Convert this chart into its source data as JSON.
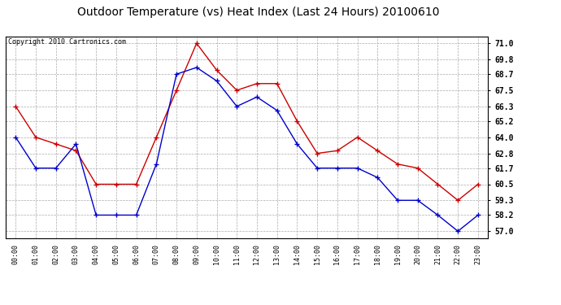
{
  "title": "Outdoor Temperature (vs) Heat Index (Last 24 Hours) 20100610",
  "copyright": "Copyright 2010 Cartronics.com",
  "x_labels": [
    "00:00",
    "01:00",
    "02:00",
    "03:00",
    "04:00",
    "05:00",
    "06:00",
    "07:00",
    "08:00",
    "09:00",
    "10:00",
    "11:00",
    "12:00",
    "13:00",
    "14:00",
    "15:00",
    "16:00",
    "17:00",
    "18:00",
    "19:00",
    "20:00",
    "21:00",
    "22:00",
    "23:00"
  ],
  "red_data": [
    66.3,
    64.0,
    63.5,
    63.0,
    60.5,
    60.5,
    60.5,
    64.0,
    67.5,
    71.0,
    69.0,
    67.5,
    68.0,
    68.0,
    65.2,
    62.8,
    63.0,
    64.0,
    63.0,
    62.0,
    61.7,
    60.5,
    59.3,
    60.5
  ],
  "blue_data": [
    64.0,
    61.7,
    61.7,
    63.5,
    58.2,
    58.2,
    58.2,
    62.0,
    68.7,
    69.2,
    68.2,
    66.3,
    67.0,
    66.0,
    63.5,
    61.7,
    61.7,
    61.7,
    61.0,
    59.3,
    59.3,
    58.2,
    57.0,
    58.2
  ],
  "y_ticks": [
    57.0,
    58.2,
    59.3,
    60.5,
    61.7,
    62.8,
    64.0,
    65.2,
    66.3,
    67.5,
    68.7,
    69.8,
    71.0
  ],
  "ylim": [
    56.5,
    71.5
  ],
  "red_color": "#cc0000",
  "blue_color": "#0000cc",
  "bg_color": "#ffffff",
  "plot_bg_color": "#ffffff",
  "grid_color": "#aaaaaa",
  "title_fontsize": 10,
  "copyright_fontsize": 6
}
